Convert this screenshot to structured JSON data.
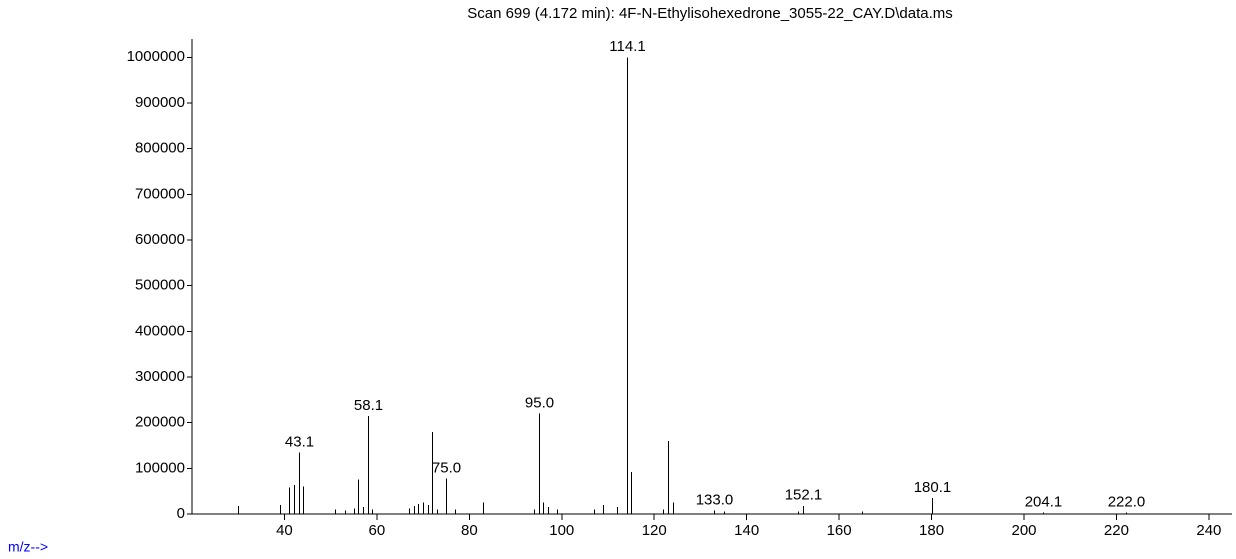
{
  "chart_data": {
    "type": "stick",
    "title": "Scan 699 (4.172 min): 4F-N-Ethylisohexedrone_3055-22_CAY.D\\data.ms",
    "x_label": "m/z-->",
    "x": [
      30,
      39,
      41,
      42,
      43.1,
      44,
      51,
      53,
      55,
      56,
      57,
      58.1,
      59,
      67,
      68,
      69,
      70,
      71,
      72,
      73,
      75.0,
      77,
      83,
      94,
      95.0,
      96,
      97,
      99,
      107,
      109,
      112,
      114.1,
      115,
      122,
      123,
      124,
      133.0,
      135,
      151,
      152.1,
      165,
      180.1,
      204.1,
      222.0
    ],
    "values": [
      18000,
      20000,
      58000,
      63000,
      135000,
      60000,
      10000,
      8000,
      12000,
      75000,
      15000,
      215000,
      10000,
      12000,
      18000,
      22000,
      25000,
      20000,
      180000,
      10000,
      78000,
      10000,
      25000,
      10000,
      220000,
      25000,
      15000,
      10000,
      10000,
      20000,
      15000,
      1000000,
      92000,
      10000,
      160000,
      25000,
      8000,
      5000,
      5000,
      18000,
      5000,
      35000,
      3000,
      3000
    ],
    "x_labels": [
      null,
      null,
      null,
      null,
      "43.1",
      null,
      null,
      null,
      null,
      null,
      null,
      "58.1",
      null,
      null,
      null,
      null,
      null,
      null,
      null,
      null,
      "75.0",
      null,
      null,
      null,
      "95.0",
      null,
      null,
      null,
      null,
      null,
      null,
      "114.1",
      null,
      null,
      null,
      null,
      "133.0",
      null,
      null,
      "152.1",
      null,
      "180.1",
      "204.1",
      "222.0"
    ],
    "color": "#000000",
    "xlim": [
      20,
      245
    ],
    "xticks": [
      40,
      60,
      80,
      100,
      120,
      140,
      160,
      180,
      200,
      220,
      240
    ],
    "ylim": [
      0,
      1040000
    ],
    "yticks": [
      0,
      100000,
      200000,
      300000,
      400000,
      500000,
      600000,
      700000,
      800000,
      900000,
      1000000
    ]
  }
}
